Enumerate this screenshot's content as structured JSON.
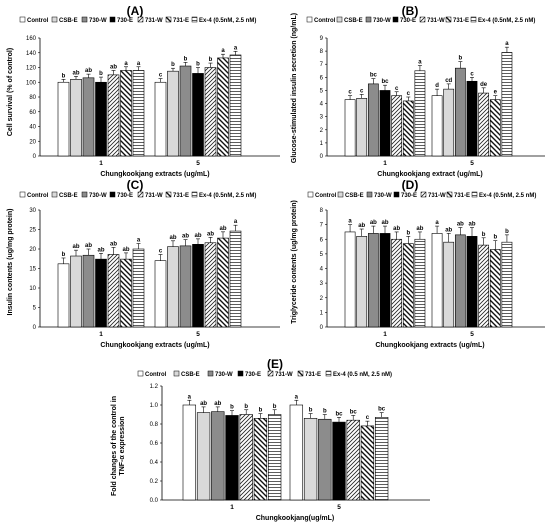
{
  "figure": {
    "panels": [
      {
        "letter": "(A)",
        "ylabel": "Cell survival (% of control)",
        "xlabel": "Chungkookjang extracts (ug/mL)"
      },
      {
        "letter": "(B)",
        "ylabel": "Glucose-stimulated insulin secretion (ng/mL)",
        "xlabel": "Chungkookjang extract (ug/mL)"
      },
      {
        "letter": "(C)",
        "ylabel": "Insulin contents (ug/mg protein)",
        "xlabel": "Chungkookjang extracts (ug/mL)"
      },
      {
        "letter": "(D)",
        "ylabel": "Triglyceride contents (ug/mg protein)",
        "xlabel": "Chungkookjang extracts (ug/mL)"
      },
      {
        "letter": "(E)",
        "ylabel": "Fold changes of the control in TNF-α expression",
        "xlabel": "Chungkookjang(ug/mL)"
      }
    ]
  },
  "chart_data": [
    {
      "type": "bar",
      "title": "(A)",
      "xlabel": "Chungkookjang extracts (ug/mL)",
      "ylabel": "Cell survival (% of control)",
      "categories": [
        "1",
        "5"
      ],
      "ylim": [
        0,
        160
      ],
      "yticks": [
        0,
        20,
        40,
        60,
        80,
        100,
        120,
        140,
        160
      ],
      "legend": [
        "Control",
        "CSB-E",
        "730-W",
        "730-E",
        "731-W",
        "731-E",
        "Ex-4 (0.5nM, 2.5 nM)"
      ],
      "series": [
        {
          "name": "Control",
          "values": [
            100,
            100
          ],
          "errors": [
            4,
            5
          ],
          "labels": [
            "b",
            "c"
          ]
        },
        {
          "name": "CSB-E",
          "values": [
            104,
            115
          ],
          "errors": [
            4,
            4
          ],
          "labels": [
            "ab",
            "b"
          ]
        },
        {
          "name": "730-W",
          "values": [
            106,
            122
          ],
          "errors": [
            5,
            5
          ],
          "labels": [
            "ab",
            "b"
          ]
        },
        {
          "name": "730-E",
          "values": [
            100,
            112
          ],
          "errors": [
            7,
            8
          ],
          "labels": [
            "b",
            "b"
          ]
        },
        {
          "name": "731-W",
          "values": [
            110,
            120
          ],
          "errors": [
            6,
            6
          ],
          "labels": [
            "ab",
            "b"
          ]
        },
        {
          "name": "731-E",
          "values": [
            116,
            133
          ],
          "errors": [
            5,
            5
          ],
          "labels": [
            "a",
            "a"
          ]
        },
        {
          "name": "Ex-4 (0.5nM, 2.5 nM)",
          "values": [
            116,
            137
          ],
          "errors": [
            5,
            5
          ],
          "labels": [
            "a",
            "a"
          ]
        }
      ]
    },
    {
      "type": "bar",
      "title": "(B)",
      "xlabel": "Chungkookjang extract (ug/mL)",
      "ylabel": "Glucose-stimulated insulin secretion (ng/mL)",
      "categories": [
        "1",
        "5"
      ],
      "ylim": [
        0,
        9
      ],
      "yticks": [
        0,
        1,
        2,
        3,
        4,
        5,
        6,
        7,
        8,
        9
      ],
      "legend": [
        "Control",
        "CSB-E",
        "730-W",
        "730-E",
        "731-W",
        "731-E",
        "Ex-4 (0.5nM, 2.5 nM)"
      ],
      "series": [
        {
          "name": "Control",
          "values": [
            4.3,
            4.6
          ],
          "errors": [
            0.3,
            0.5
          ],
          "labels": [
            "c",
            "d"
          ]
        },
        {
          "name": "CSB-E",
          "values": [
            4.4,
            5.1
          ],
          "errors": [
            0.3,
            0.4
          ],
          "labels": [
            "c",
            "cd"
          ]
        },
        {
          "name": "730-W",
          "values": [
            5.5,
            6.7
          ],
          "errors": [
            0.4,
            0.5
          ],
          "labels": [
            "bc",
            "b"
          ]
        },
        {
          "name": "730-E",
          "values": [
            5.0,
            5.7
          ],
          "errors": [
            0.4,
            0.3
          ],
          "labels": [
            "bc",
            "c"
          ]
        },
        {
          "name": "731-W",
          "values": [
            4.6,
            4.8
          ],
          "errors": [
            0.3,
            0.4
          ],
          "labels": [
            "c",
            "de"
          ]
        },
        {
          "name": "731-E",
          "values": [
            4.2,
            4.3
          ],
          "errors": [
            0.3,
            0.3
          ],
          "labels": [
            "c",
            "e"
          ]
        },
        {
          "name": "Ex-4 (0.5nM, 2.5 nM)",
          "values": [
            6.5,
            7.9
          ],
          "errors": [
            0.4,
            0.4
          ],
          "labels": [
            "a",
            "a"
          ]
        }
      ]
    },
    {
      "type": "bar",
      "title": "(C)",
      "xlabel": "Chungkookjang extracts (ug/mL)",
      "ylabel": "Insulin contents (ug/mg protein)",
      "categories": [
        "1",
        "5"
      ],
      "ylim": [
        0,
        30
      ],
      "yticks": [
        0,
        5,
        10,
        15,
        20,
        25,
        30
      ],
      "legend": [
        "Control",
        "CSB-E",
        "730-W",
        "730-E",
        "731-W",
        "731-E",
        "Ex-4 (0.5nM, 2.5 nM)"
      ],
      "series": [
        {
          "name": "Control",
          "values": [
            16.2,
            17.0
          ],
          "errors": [
            1.5,
            1.6
          ],
          "labels": [
            "b",
            "c"
          ]
        },
        {
          "name": "CSB-E",
          "values": [
            18.2,
            20.6
          ],
          "errors": [
            1.5,
            1.5
          ],
          "labels": [
            "ab",
            "ab"
          ]
        },
        {
          "name": "730-W",
          "values": [
            18.4,
            20.8
          ],
          "errors": [
            1.6,
            1.6
          ],
          "labels": [
            "ab",
            "ab"
          ]
        },
        {
          "name": "730-E",
          "values": [
            17.4,
            21.2
          ],
          "errors": [
            1.5,
            1.4
          ],
          "labels": [
            "ab",
            "ab"
          ]
        },
        {
          "name": "731-W",
          "values": [
            18.6,
            21.6
          ],
          "errors": [
            1.8,
            1.4
          ],
          "labels": [
            "ab",
            "ab"
          ]
        },
        {
          "name": "731-E",
          "values": [
            17.4,
            22.8
          ],
          "errors": [
            1.6,
            1.6
          ],
          "labels": [
            "ab",
            "ab"
          ]
        },
        {
          "name": "Ex-4 (0.5nM, 2.5 nM)",
          "values": [
            20.0,
            24.6
          ],
          "errors": [
            1.4,
            1.5
          ],
          "labels": [
            "a",
            "a"
          ]
        }
      ]
    },
    {
      "type": "bar",
      "title": "(D)",
      "xlabel": "Chungkookjang extracts (ug/mL)",
      "ylabel": "Triglyceride contents (ug/mg protein)",
      "categories": [
        "1",
        "5"
      ],
      "ylim": [
        0,
        8
      ],
      "yticks": [
        0,
        1,
        2,
        3,
        4,
        5,
        6,
        7,
        8
      ],
      "legend": [
        "Control",
        "CSB-E",
        "730-W",
        "730-E",
        "731-W",
        "731-E",
        "Ex-4 (0.5nM, 2.5 nM)"
      ],
      "series": [
        {
          "name": "Control",
          "values": [
            6.5,
            6.4
          ],
          "errors": [
            0.5,
            0.5
          ],
          "labels": [
            "a",
            "a"
          ]
        },
        {
          "name": "CSB-E",
          "values": [
            6.2,
            5.8
          ],
          "errors": [
            0.5,
            0.6
          ],
          "labels": [
            "ab",
            "ab"
          ]
        },
        {
          "name": "730-W",
          "values": [
            6.4,
            6.3
          ],
          "errors": [
            0.5,
            0.5
          ],
          "labels": [
            "ab",
            "ab"
          ]
        },
        {
          "name": "730-E",
          "values": [
            6.4,
            6.2
          ],
          "errors": [
            0.5,
            0.6
          ],
          "labels": [
            "ab",
            "ab"
          ]
        },
        {
          "name": "731-W",
          "values": [
            6.0,
            5.6
          ],
          "errors": [
            0.5,
            0.5
          ],
          "labels": [
            "ab",
            "b"
          ]
        },
        {
          "name": "731-E",
          "values": [
            5.7,
            5.3
          ],
          "errors": [
            0.5,
            0.6
          ],
          "labels": [
            "b",
            "b"
          ]
        },
        {
          "name": "Ex-4 (0.5nM, 2.5 nM)",
          "values": [
            6.0,
            5.8
          ],
          "errors": [
            0.5,
            0.5
          ],
          "labels": [
            "ab",
            "b"
          ]
        }
      ]
    },
    {
      "type": "bar",
      "title": "(E)",
      "xlabel": "Chungkookjang(ug/mL)",
      "ylabel": "Fold changes of the control in TNF-α expression",
      "categories": [
        "1",
        "5"
      ],
      "ylim": [
        0,
        1.2
      ],
      "yticks": [
        0,
        0.2,
        0.4,
        0.6,
        0.8,
        1.0,
        1.2
      ],
      "legend": [
        "Control",
        "CSB-E",
        "730-W",
        "730-E",
        "731-W",
        "731-E",
        "Ex-4 (0.5 nM, 2.5 nM)"
      ],
      "series": [
        {
          "name": "Control",
          "values": [
            1.0,
            1.0
          ],
          "errors": [
            0.05,
            0.05
          ],
          "labels": [
            "a",
            "a"
          ]
        },
        {
          "name": "CSB-E",
          "values": [
            0.92,
            0.86
          ],
          "errors": [
            0.06,
            0.05
          ],
          "labels": [
            "ab",
            "b"
          ]
        },
        {
          "name": "730-W",
          "values": [
            0.93,
            0.85
          ],
          "errors": [
            0.05,
            0.05
          ],
          "labels": [
            "ab",
            "b"
          ]
        },
        {
          "name": "730-E",
          "values": [
            0.89,
            0.82
          ],
          "errors": [
            0.05,
            0.05
          ],
          "labels": [
            "b",
            "bc"
          ]
        },
        {
          "name": "731-W",
          "values": [
            0.9,
            0.84
          ],
          "errors": [
            0.05,
            0.05
          ],
          "labels": [
            "b",
            "bc"
          ]
        },
        {
          "name": "731-E",
          "values": [
            0.86,
            0.78
          ],
          "errors": [
            0.05,
            0.05
          ],
          "labels": [
            "b",
            "c"
          ]
        },
        {
          "name": "Ex-4 (0.5 nM, 2.5 nM)",
          "values": [
            0.9,
            0.87
          ],
          "errors": [
            0.05,
            0.05
          ],
          "labels": [
            "b",
            "bc"
          ]
        }
      ]
    }
  ]
}
